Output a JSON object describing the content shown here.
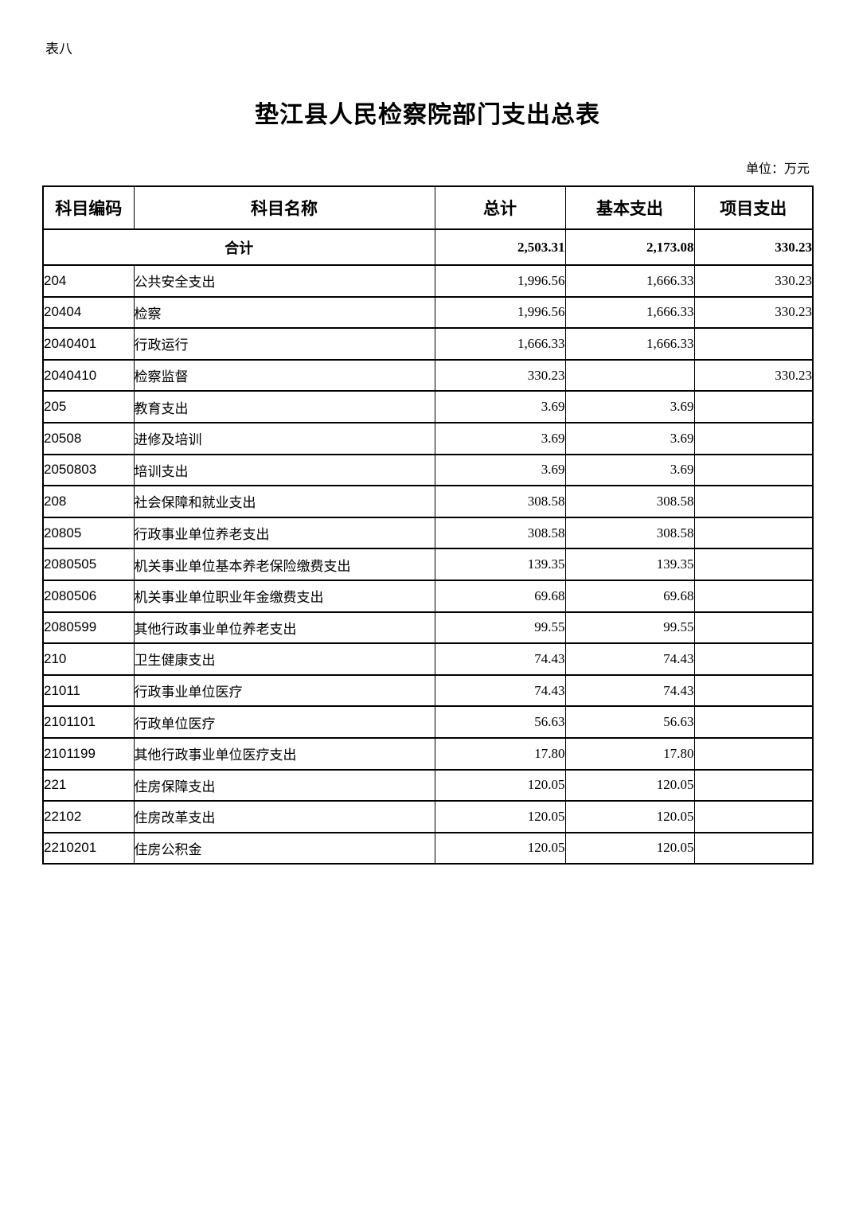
{
  "page": {
    "corner_label": "表八",
    "title": "垫江县人民检察院部门支出总表",
    "unit_note": "单位：万元"
  },
  "colors": {
    "text": "#000000",
    "border": "#000000",
    "background": "#ffffff"
  },
  "table": {
    "headers": {
      "code": "科目编码",
      "name": "科目名称",
      "total": "总计",
      "basic": "基本支出",
      "project": "项目支出"
    },
    "total_row": {
      "label": "合计",
      "total": "2,503.31",
      "basic": "2,173.08",
      "project": "330.23"
    },
    "rows": [
      {
        "code": "204",
        "name": "公共安全支出",
        "total": "1,996.56",
        "basic": "1,666.33",
        "project": "330.23",
        "level": 1
      },
      {
        "code": "20404",
        "name": "检察",
        "total": "1,996.56",
        "basic": "1,666.33",
        "project": "330.23",
        "level": 2
      },
      {
        "code": "2040401",
        "name": "行政运行",
        "total": "1,666.33",
        "basic": "1,666.33",
        "project": "",
        "level": 3
      },
      {
        "code": "2040410",
        "name": "检察监督",
        "total": "330.23",
        "basic": "",
        "project": "330.23",
        "level": 3
      },
      {
        "code": "205",
        "name": "教育支出",
        "total": "3.69",
        "basic": "3.69",
        "project": "",
        "level": 1
      },
      {
        "code": "20508",
        "name": "进修及培训",
        "total": "3.69",
        "basic": "3.69",
        "project": "",
        "level": 2
      },
      {
        "code": "2050803",
        "name": "培训支出",
        "total": "3.69",
        "basic": "3.69",
        "project": "",
        "level": 3
      },
      {
        "code": "208",
        "name": "社会保障和就业支出",
        "total": "308.58",
        "basic": "308.58",
        "project": "",
        "level": 1
      },
      {
        "code": "20805",
        "name": "行政事业单位养老支出",
        "total": "308.58",
        "basic": "308.58",
        "project": "",
        "level": 2
      },
      {
        "code": "2080505",
        "name": "机关事业单位基本养老保险缴费支出",
        "total": "139.35",
        "basic": "139.35",
        "project": "",
        "level": 3
      },
      {
        "code": "2080506",
        "name": "机关事业单位职业年金缴费支出",
        "total": "69.68",
        "basic": "69.68",
        "project": "",
        "level": 3
      },
      {
        "code": "2080599",
        "name": "其他行政事业单位养老支出",
        "total": "99.55",
        "basic": "99.55",
        "project": "",
        "level": 3
      },
      {
        "code": "210",
        "name": "卫生健康支出",
        "total": "74.43",
        "basic": "74.43",
        "project": "",
        "level": 1
      },
      {
        "code": "21011",
        "name": "行政事业单位医疗",
        "total": "74.43",
        "basic": "74.43",
        "project": "",
        "level": 2
      },
      {
        "code": "2101101",
        "name": "行政单位医疗",
        "total": "56.63",
        "basic": "56.63",
        "project": "",
        "level": 3
      },
      {
        "code": "2101199",
        "name": "其他行政事业单位医疗支出",
        "total": "17.80",
        "basic": "17.80",
        "project": "",
        "level": 3
      },
      {
        "code": "221",
        "name": "住房保障支出",
        "total": "120.05",
        "basic": "120.05",
        "project": "",
        "level": 1
      },
      {
        "code": "22102",
        "name": "住房改革支出",
        "total": "120.05",
        "basic": "120.05",
        "project": "",
        "level": 2
      },
      {
        "code": "2210201",
        "name": "住房公积金",
        "total": "120.05",
        "basic": "120.05",
        "project": "",
        "level": 3
      }
    ]
  }
}
